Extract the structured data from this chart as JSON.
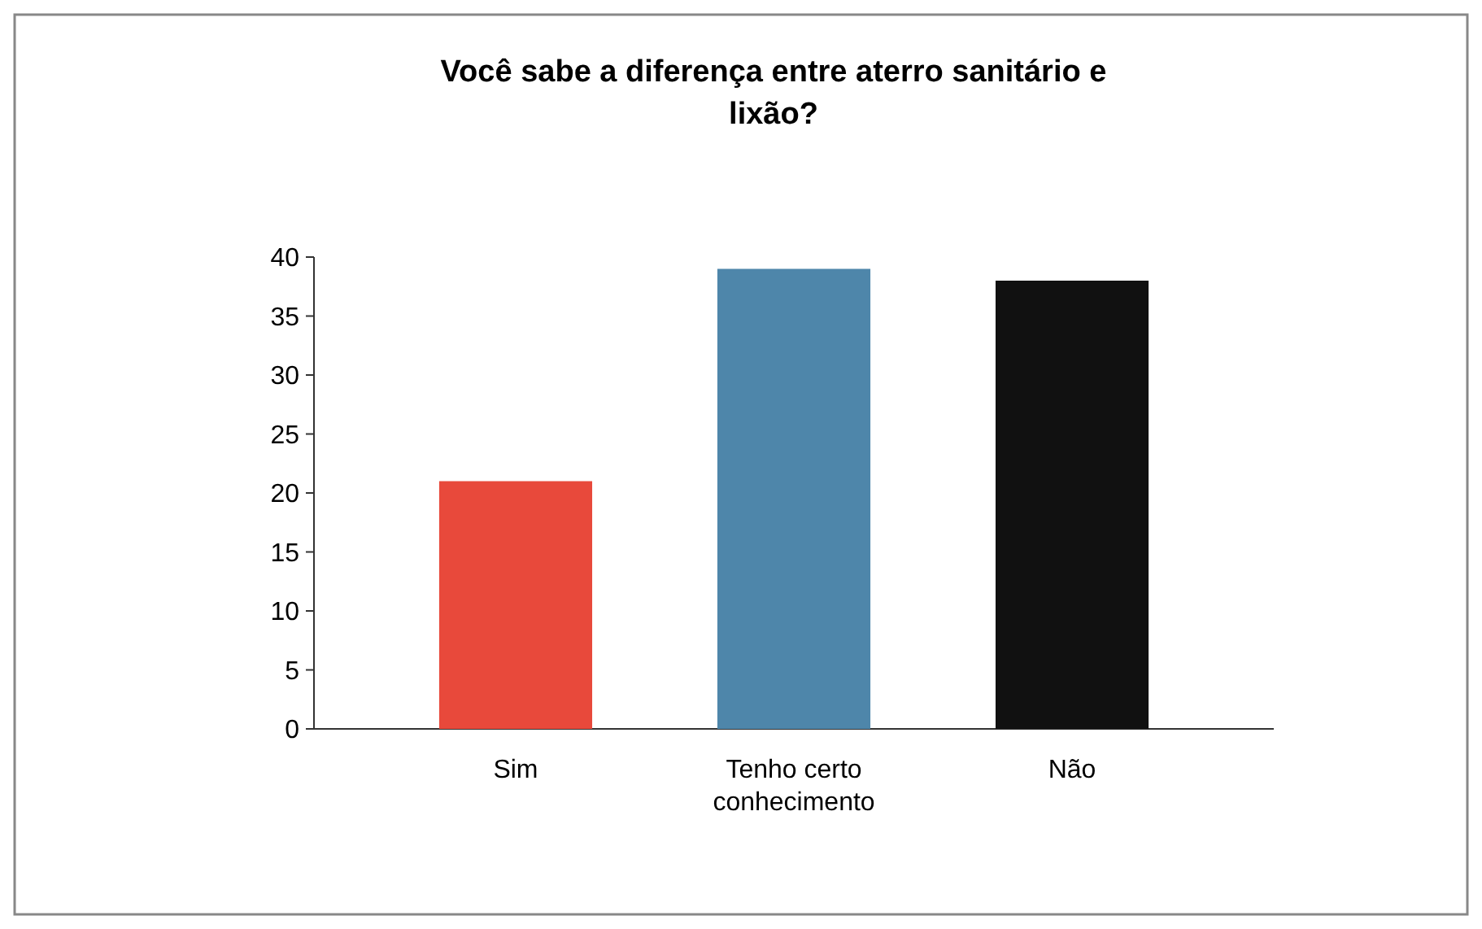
{
  "chart_data": {
    "type": "bar",
    "title": "Você sabe a diferença entre aterro sanitário e lixão?",
    "categories": [
      "Sim",
      "Tenho certo conhecimento",
      "Não"
    ],
    "values": [
      21,
      39,
      38
    ],
    "colors": [
      "#e8493b",
      "#4e86aa",
      "#111111"
    ],
    "ylim": [
      0,
      40
    ],
    "yticks": [
      0,
      5,
      10,
      15,
      20,
      25,
      30,
      35,
      40
    ],
    "grid": false
  }
}
